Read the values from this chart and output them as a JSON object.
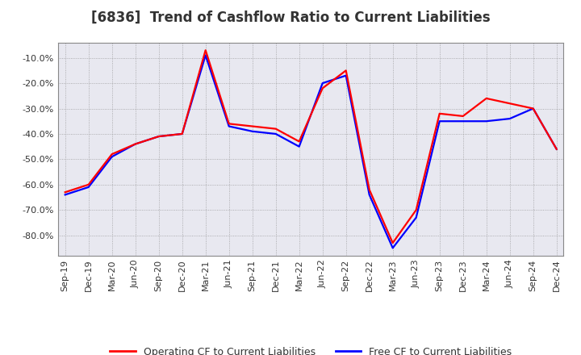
{
  "title": "[6836]  Trend of Cashflow Ratio to Current Liabilities",
  "x_labels": [
    "Sep-19",
    "Dec-19",
    "Mar-20",
    "Jun-20",
    "Sep-20",
    "Dec-20",
    "Mar-21",
    "Jun-21",
    "Sep-21",
    "Dec-21",
    "Mar-22",
    "Jun-22",
    "Sep-22",
    "Dec-22",
    "Mar-23",
    "Jun-23",
    "Sep-23",
    "Dec-23",
    "Mar-24",
    "Jun-24",
    "Sep-24",
    "Dec-24"
  ],
  "operating_cf": [
    -63,
    -60,
    -48,
    -44,
    -41,
    -40,
    -7,
    -36,
    -37,
    -38,
    -43,
    -22,
    -15,
    -62,
    -83,
    -70,
    -32,
    -33,
    -26,
    -28,
    -30,
    -46
  ],
  "free_cf": [
    -64,
    -61,
    -49,
    -44,
    -41,
    -40,
    -9,
    -37,
    -39,
    -40,
    -45,
    -20,
    -17,
    -64,
    -85,
    -73,
    -35,
    -35,
    -35,
    -34,
    -30,
    -46
  ],
  "ylim": [
    -88,
    -4
  ],
  "yticks": [
    -80,
    -70,
    -60,
    -50,
    -40,
    -30,
    -20,
    -10
  ],
  "operating_color": "#ff0000",
  "free_color": "#0000ff",
  "background_color": "#ffffff",
  "plot_bg_color": "#e8e8f0",
  "grid_color": "#888888",
  "legend_operating": "Operating CF to Current Liabilities",
  "legend_free": "Free CF to Current Liabilities",
  "title_fontsize": 12,
  "tick_fontsize": 8,
  "line_width": 1.6
}
